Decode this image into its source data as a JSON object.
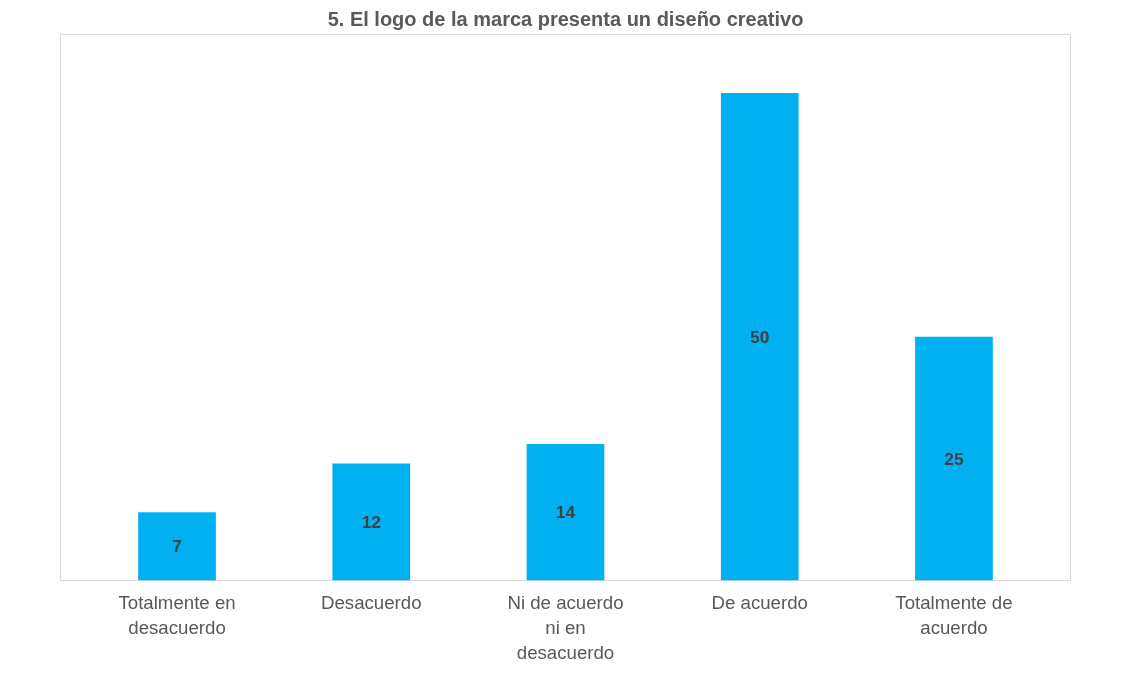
{
  "chart_data": {
    "type": "bar",
    "title": "5. El logo de la marca presenta un diseño creativo",
    "categories": [
      "Totalmente en desacuerdo",
      "Desacuerdo",
      "Ni de acuerdo ni en desacuerdo",
      "De acuerdo",
      "Totalmente de acuerdo"
    ],
    "values": [
      7,
      12,
      14,
      50,
      25
    ],
    "color": "#00b0f0",
    "data_labels": true,
    "grid": false
  }
}
